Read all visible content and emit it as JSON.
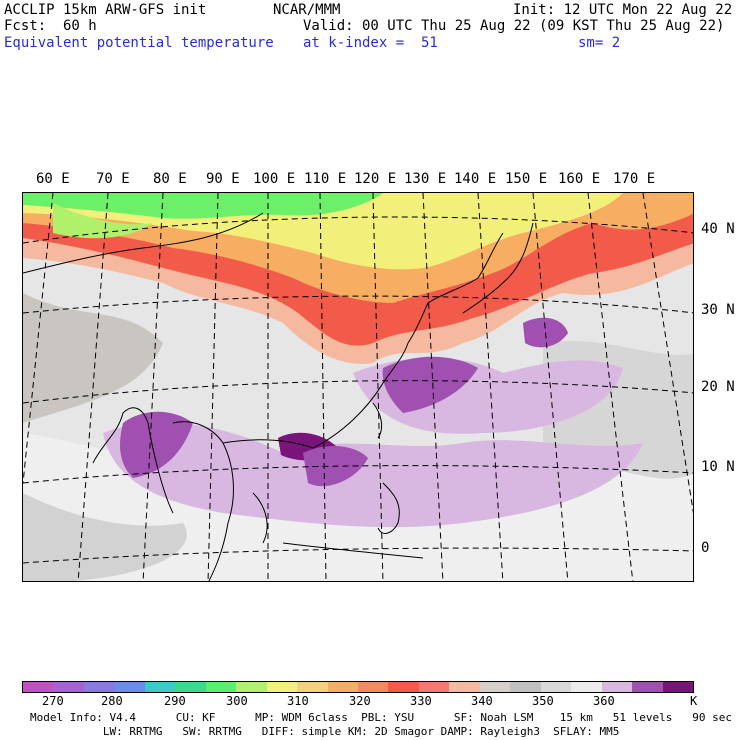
{
  "header": {
    "model": "ACCLIP 15km ARW-GFS init",
    "fcst_label": "Fcst:",
    "fcst_value": "60 h",
    "field": "Equivalent potential temperature",
    "org": "NCAR/MMM",
    "valid": "Valid: 00 UTC Thu 25 Aug 22 (09 KST Thu 25 Aug 22)",
    "level": "at k-index =  51",
    "init": "Init: 12 UTC Mon 22 Aug 22",
    "smooth": "sm= 2"
  },
  "map": {
    "lon_labels": [
      "60 E",
      "70 E",
      "80 E",
      "90 E",
      "100 E",
      "110 E",
      "120 E",
      "130 E",
      "140 E",
      "150 E",
      "160 E",
      "170 E"
    ],
    "lat_labels": [
      "40 N",
      "30 N",
      "20 N",
      "10 N",
      "0"
    ]
  },
  "colorbar": {
    "colors": [
      "#c44fc4",
      "#a660d8",
      "#8a78e6",
      "#6a8cf0",
      "#3ec8c8",
      "#3ed88c",
      "#5cf06a",
      "#b0f06a",
      "#f2f07a",
      "#f5d27a",
      "#f7ad62",
      "#f58a62",
      "#f25a4a",
      "#f07a70",
      "#f5b9a0",
      "#d4cfca",
      "#c0c0c0",
      "#d8d8d8",
      "#ececec",
      "#d8b8e0",
      "#a050b0",
      "#7a147a"
    ],
    "ticks": [
      "270",
      "280",
      "290",
      "300",
      "310",
      "320",
      "330",
      "340",
      "350",
      "360",
      "K"
    ],
    "colors_accent": "#7a147a"
  },
  "footer": {
    "line1": "Model Info: V4.4      CU: KF      MP: WDM 6class  PBL: YSU      SF: Noah LSM    15 km   51 levels   90 sec",
    "line2": "           LW: RRTMG   SW: RRTMG   DIFF: simple KM: 2D Smagor DAMP: Rayleigh3  SFLAY: MM5"
  }
}
